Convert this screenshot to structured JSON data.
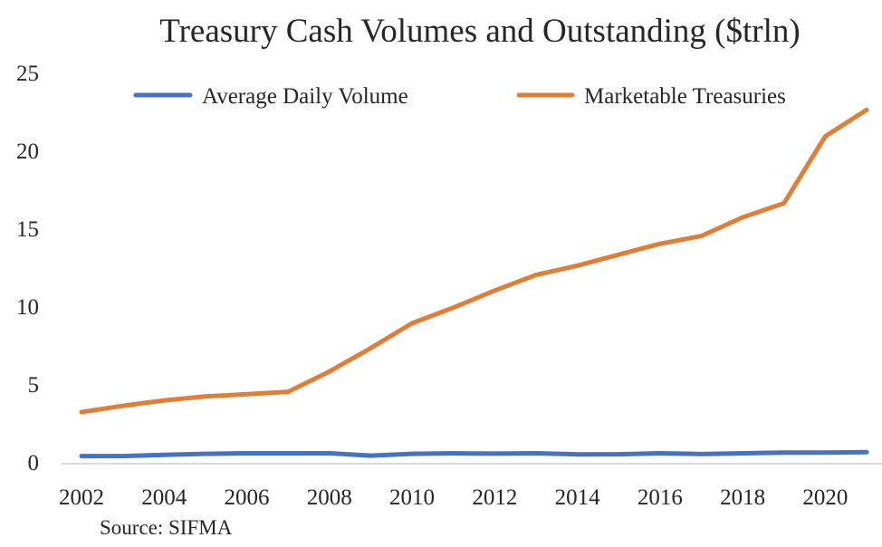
{
  "chart_data": {
    "type": "line",
    "title": "Treasury Cash Volumes and Outstanding ($trln)",
    "xlabel": "",
    "ylabel": "",
    "source": "Source: SIFMA",
    "x": [
      2002,
      2003,
      2004,
      2005,
      2006,
      2007,
      2008,
      2009,
      2010,
      2011,
      2012,
      2013,
      2014,
      2015,
      2016,
      2017,
      2018,
      2019,
      2020,
      2021
    ],
    "x_tick_labels": [
      "2002",
      "2004",
      "2006",
      "2008",
      "2010",
      "2012",
      "2014",
      "2016",
      "2018",
      "2020"
    ],
    "y_tick_labels": [
      "0",
      "5",
      "10",
      "15",
      "20",
      "25"
    ],
    "ylim": [
      0,
      25
    ],
    "xlim": [
      2002,
      2021
    ],
    "grid": false,
    "legend_position": "top",
    "series": [
      {
        "name": "Average Daily Volume",
        "color": "#4472C4",
        "values": [
          0.37,
          0.37,
          0.45,
          0.52,
          0.55,
          0.55,
          0.55,
          0.4,
          0.52,
          0.55,
          0.53,
          0.55,
          0.48,
          0.49,
          0.55,
          0.5,
          0.55,
          0.6,
          0.6,
          0.62
        ]
      },
      {
        "name": "Marketable Treasuries",
        "color": "#E07E35",
        "values": [
          3.2,
          3.6,
          3.95,
          4.2,
          4.35,
          4.5,
          5.8,
          7.3,
          8.9,
          9.9,
          11.0,
          12.0,
          12.6,
          13.3,
          14.0,
          14.5,
          15.7,
          16.6,
          20.9,
          22.6
        ]
      }
    ]
  }
}
